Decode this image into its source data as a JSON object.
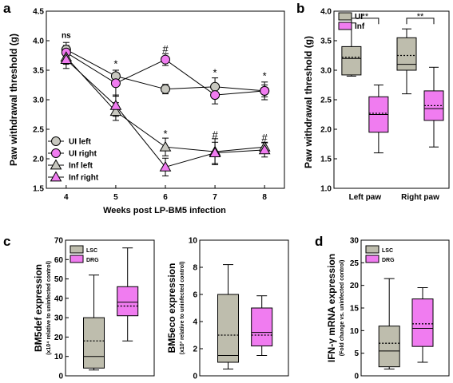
{
  "panels": {
    "a": "a",
    "b": "b",
    "c": "c",
    "d": "d"
  },
  "colors": {
    "ui": "#c8c8c0",
    "inf": "#f07cf0",
    "box_gray": "#bebdad",
    "box_pink": "#f07cf0"
  },
  "chart_data": [
    {
      "id": "a",
      "type": "line",
      "xlabel": "Weeks post LP-BM5 infection",
      "ylabel": "Paw withdrawal threshold (g)",
      "x": [
        4,
        5,
        6,
        7,
        8
      ],
      "xlim": [
        3.6,
        8.4
      ],
      "ylim": [
        1.5,
        4.5
      ],
      "yticks": [
        "1.5",
        "2.0",
        "2.5",
        "3.0",
        "3.5",
        "4.0",
        "4.5"
      ],
      "series": [
        {
          "name": "UI left",
          "marker": "circle",
          "fill": "#c8c8c0",
          "y": [
            3.85,
            3.4,
            3.18,
            3.22,
            3.15
          ],
          "err": [
            0.12,
            0.1,
            0.08,
            0.15,
            0.1
          ]
        },
        {
          "name": "UI right",
          "marker": "circle",
          "fill": "#f07cf0",
          "y": [
            3.8,
            3.28,
            3.68,
            3.08,
            3.15
          ],
          "err": [
            0.12,
            0.22,
            0.1,
            0.15,
            0.15
          ]
        },
        {
          "name": "Inf left",
          "marker": "triangle",
          "fill": "#c8c8c0",
          "y": [
            3.72,
            2.8,
            2.2,
            2.12,
            2.2
          ],
          "err": [
            0.12,
            0.15,
            0.15,
            0.22,
            0.08
          ]
        },
        {
          "name": "Inf right",
          "marker": "triangle",
          "fill": "#f07cf0",
          "y": [
            3.68,
            2.9,
            1.86,
            2.1,
            2.15
          ],
          "err": [
            0.15,
            0.18,
            0.15,
            0.18,
            0.12
          ]
        }
      ],
      "annotations": [
        {
          "x": 4,
          "y": 4.1,
          "text": "ns"
        },
        {
          "x": 5,
          "y": 3.6,
          "text": "*"
        },
        {
          "x": 6,
          "y": 3.85,
          "text": "#"
        },
        {
          "x": 7,
          "y": 3.45,
          "text": "*"
        },
        {
          "x": 8,
          "y": 3.4,
          "text": "*"
        },
        {
          "x": 6,
          "y": 2.42,
          "text": "*"
        },
        {
          "x": 7,
          "y": 2.4,
          "text": "#"
        },
        {
          "x": 8,
          "y": 2.35,
          "text": "#"
        }
      ]
    },
    {
      "id": "b",
      "type": "box",
      "ylabel": "Paw withdrawal threshold (g)",
      "categories": [
        "Left paw",
        "Right paw"
      ],
      "ylim": [
        1.0,
        4.0
      ],
      "yticks": [
        "1.0",
        "1.5",
        "2.0",
        "2.5",
        "3.0",
        "3.5",
        "4.0"
      ],
      "legend": [
        "UI",
        "Inf"
      ],
      "boxes": [
        {
          "group": 0,
          "series": "UI",
          "whisker_low": 2.9,
          "q1": 2.92,
          "median": 3.2,
          "mean": 3.22,
          "q3": 3.4,
          "whisker_high": 3.8
        },
        {
          "group": 0,
          "series": "Inf",
          "whisker_low": 1.6,
          "q1": 1.95,
          "median": 2.25,
          "mean": 2.27,
          "q3": 2.55,
          "whisker_high": 2.75
        },
        {
          "group": 1,
          "series": "UI",
          "whisker_low": 2.6,
          "q1": 3.0,
          "median": 3.1,
          "mean": 3.25,
          "q3": 3.55,
          "whisker_high": 3.7
        },
        {
          "group": 1,
          "series": "Inf",
          "whisker_low": 1.7,
          "q1": 2.15,
          "median": 2.35,
          "mean": 2.4,
          "q3": 2.65,
          "whisker_high": 3.05
        }
      ],
      "brackets": [
        {
          "group": 0,
          "text": "**"
        },
        {
          "group": 1,
          "text": "**"
        }
      ]
    },
    {
      "id": "c1",
      "type": "box",
      "ylabel": "BM5def expression",
      "ysub": "(x10⁴ relative to uninfected control)",
      "ylim": [
        0,
        70
      ],
      "yticks": [
        "0",
        "10",
        "20",
        "30",
        "40",
        "50",
        "60",
        "70"
      ],
      "legend": [
        "LSC",
        "DRG"
      ],
      "boxes": [
        {
          "series": "LSC",
          "whisker_low": 3,
          "q1": 4,
          "median": 10,
          "mean": 18,
          "q3": 30,
          "whisker_high": 52
        },
        {
          "series": "DRG",
          "whisker_low": 18,
          "q1": 31,
          "median": 38,
          "mean": 36,
          "q3": 46,
          "whisker_high": 66
        }
      ]
    },
    {
      "id": "c2",
      "type": "box",
      "ylabel": "BM5eco expression",
      "ysub": "(x10³ relative to uninfected control)",
      "ylim": [
        0,
        10
      ],
      "yticks": [
        "0",
        "2",
        "4",
        "6",
        "8",
        "10"
      ],
      "boxes": [
        {
          "series": "LSC",
          "whisker_low": 0.5,
          "q1": 1.0,
          "median": 1.5,
          "mean": 3.0,
          "q3": 6.0,
          "whisker_high": 8.2
        },
        {
          "series": "DRG",
          "whisker_low": 1.5,
          "q1": 2.2,
          "median": 3.2,
          "mean": 3.0,
          "q3": 5.0,
          "whisker_high": 5.9
        }
      ]
    },
    {
      "id": "d",
      "type": "box",
      "ylabel": "IFN-γ mRNA expression",
      "ysub": "(Fold change vs. uninfected control)",
      "ylim": [
        0,
        30
      ],
      "yticks": [
        "0",
        "5",
        "10",
        "15",
        "20",
        "25",
        "30"
      ],
      "legend": [
        "LSC",
        "DRG"
      ],
      "boxes": [
        {
          "series": "LSC",
          "whisker_low": 1.5,
          "q1": 2.0,
          "median": 5.5,
          "mean": 7.2,
          "q3": 11,
          "whisker_high": 21.5
        },
        {
          "series": "DRG",
          "whisker_low": 3,
          "q1": 6.5,
          "median": 10.5,
          "mean": 11.5,
          "q3": 17,
          "whisker_high": 19.5
        }
      ]
    }
  ]
}
